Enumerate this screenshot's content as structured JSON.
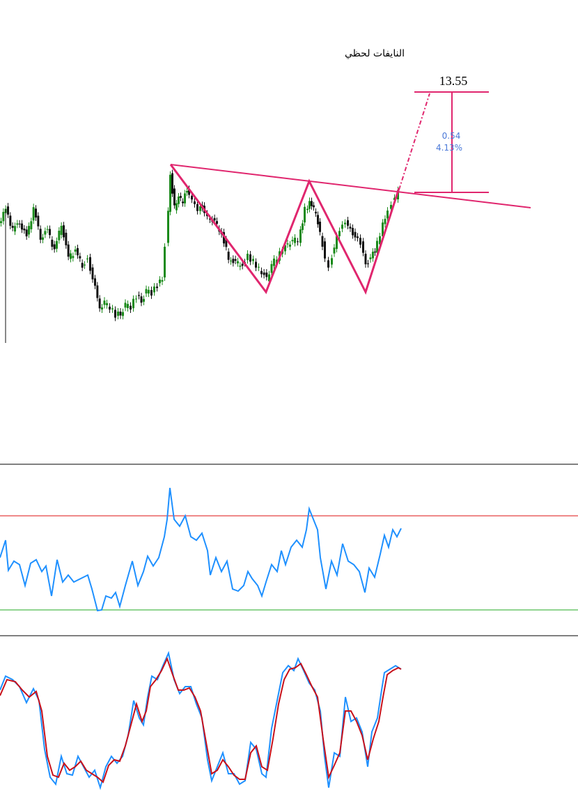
{
  "header": {
    "title": "النايفات لحظي"
  },
  "annotations": {
    "target": "13.55",
    "change": "0.54",
    "change_pct": "4.13%"
  }
}
